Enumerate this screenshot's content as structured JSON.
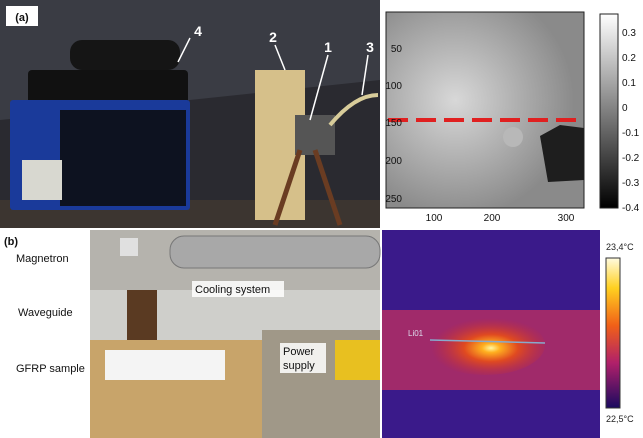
{
  "panel_a": {
    "label": "(a)",
    "callouts": [
      "1",
      "2",
      "3",
      "4"
    ],
    "image_y_ticks": [
      "50",
      "100",
      "150",
      "200",
      "250"
    ],
    "image_x_ticks": [
      "100",
      "200",
      "300"
    ],
    "colorbar_ticks": [
      "0.3",
      "0.2",
      "0.1",
      "0",
      "-0.1",
      "-0.2",
      "-0.3",
      "-0.4"
    ]
  },
  "panel_b": {
    "label": "(b)",
    "magnetron": "Magnetron",
    "waveguide": "Waveguide",
    "sample": "GFRP sample",
    "cooling": "Cooling system",
    "power_supply": [
      "Power",
      "supply"
    ],
    "colorbar_max": "23,4°C",
    "colorbar_min": "22,5°C",
    "line_label": "Li01"
  }
}
